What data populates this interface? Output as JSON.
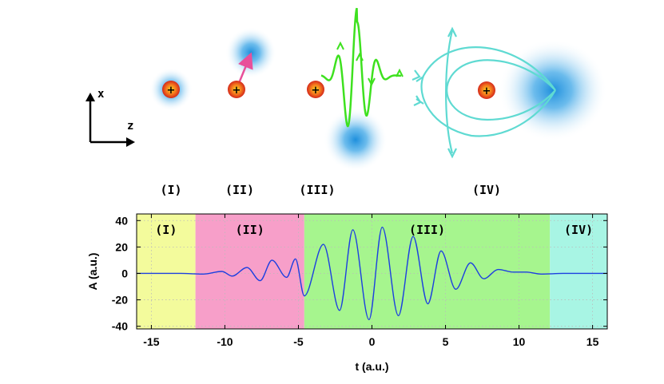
{
  "axes_icon": {
    "x_label": "x",
    "z_label": "z"
  },
  "stage_labels": [
    "(I)",
    "(II)",
    "(III)",
    "(IV)"
  ],
  "colors": {
    "nucleus": "#e8341c",
    "electron_cloud": "#2a9fe0",
    "region_I": "#f3fb9c",
    "region_II": "#f79fc9",
    "region_III": "#a6f58e",
    "region_IV": "#a8f5e4",
    "trajectory_II": "#e8509a",
    "wavepacket_III": "#3ee11f",
    "trajectory_IV": "#5fdad2",
    "pulse": "#1c3fe0"
  },
  "chart_data": {
    "type": "line",
    "xlabel": "t (a.u.)",
    "ylabel": "A (a.u.)",
    "xlim": [
      -16,
      16
    ],
    "ylim": [
      -42,
      45
    ],
    "xticks": [
      -15,
      -10,
      -5,
      0,
      5,
      10,
      15
    ],
    "yticks": [
      40,
      20,
      0,
      -20,
      -40
    ],
    "regions": [
      {
        "label": "(I)",
        "x_start": -16,
        "x_end": -12
      },
      {
        "label": "(II)",
        "x_start": -12,
        "x_end": -4.6
      },
      {
        "label": "(III)",
        "x_start": -4.6,
        "x_end": 12.1
      },
      {
        "label": "(IV)",
        "x_start": 12.1,
        "x_end": 16
      }
    ],
    "series": [
      {
        "x": [
          -16,
          -13,
          -11.5,
          -10.2,
          -9.5,
          -8.5,
          -7.6,
          -6.8,
          -5.8,
          -5.2,
          -4.6,
          -3.3,
          -2.2,
          -1.3,
          -0.2,
          0.7,
          1.8,
          2.8,
          3.8,
          4.7,
          5.7,
          6.7,
          7.6,
          8.6,
          9.6,
          10.5,
          11.5,
          13,
          16
        ],
        "y": [
          0,
          0,
          -0.5,
          1.5,
          -2,
          4.5,
          -5.5,
          10,
          -3,
          11,
          -17,
          22,
          -28,
          33,
          -35,
          35,
          -32,
          28,
          -23,
          17,
          -12,
          8,
          -4,
          3,
          1,
          1,
          -0.5,
          0,
          0
        ]
      }
    ]
  }
}
